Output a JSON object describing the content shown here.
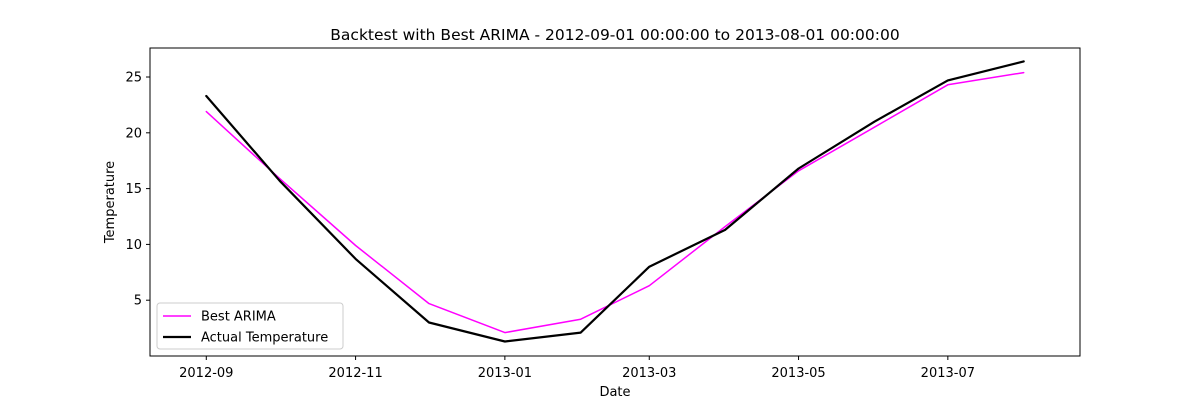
{
  "chart_data": {
    "type": "line",
    "title": "Backtest with Best ARIMA - 2012-09-01 00:00:00 to 2013-08-01 00:00:00",
    "xlabel": "Date",
    "ylabel": "Temperature",
    "x": [
      "2012-09-01",
      "2012-10-01",
      "2012-11-01",
      "2012-12-01",
      "2013-01-01",
      "2013-02-01",
      "2013-03-01",
      "2013-04-01",
      "2013-05-01",
      "2013-06-01",
      "2013-07-01",
      "2013-08-01"
    ],
    "x_range": [
      "2012-08-09",
      "2013-08-24"
    ],
    "x_ticks": [
      "2012-09",
      "2012-11",
      "2013-01",
      "2013-03",
      "2013-05",
      "2013-07"
    ],
    "ylim": [
      0.0,
      27.6
    ],
    "y_ticks": [
      5,
      10,
      15,
      20,
      25
    ],
    "grid": false,
    "legend_position": "lower-left",
    "series": [
      {
        "name": "Best ARIMA",
        "color": "#ff00ff",
        "values": [
          21.9,
          15.9,
          9.9,
          4.7,
          2.1,
          3.3,
          6.3,
          11.6,
          16.6,
          20.5,
          24.3,
          25.4
        ]
      },
      {
        "name": "Actual Temperature",
        "color": "#000000",
        "values": [
          23.3,
          15.7,
          8.7,
          3.0,
          1.3,
          2.1,
          8.0,
          11.3,
          16.8,
          21.0,
          24.7,
          26.4
        ]
      }
    ]
  }
}
